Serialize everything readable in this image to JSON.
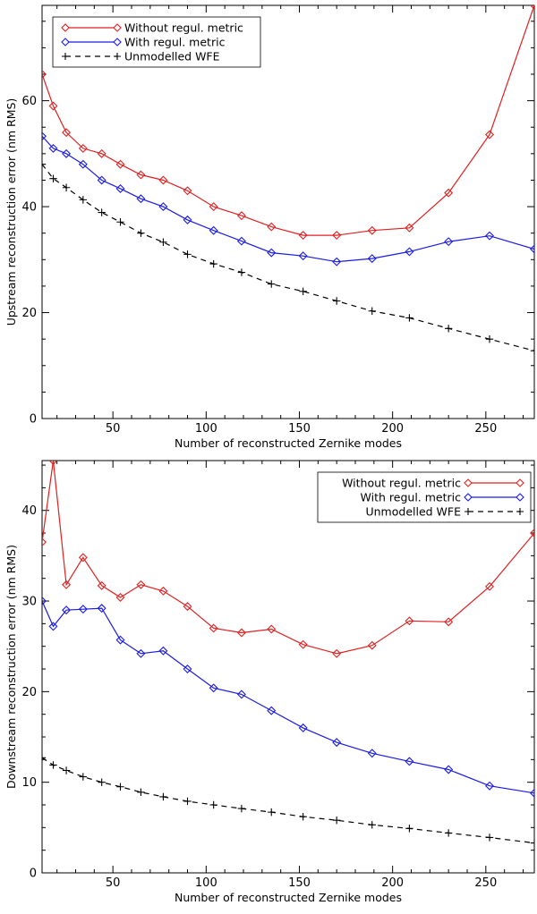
{
  "chart_data": [
    {
      "type": "line",
      "title": "",
      "xlabel": "Number of reconstructed Zernike modes",
      "ylabel": "Upstream reconstruction error (nm RMS)",
      "xlim": [
        12,
        276
      ],
      "ylim": [
        0,
        78
      ],
      "xticks": [
        50,
        100,
        150,
        200,
        250
      ],
      "yticks": [
        0,
        20,
        40,
        60
      ],
      "legend_position": "top-left",
      "x": [
        12,
        18,
        25,
        34,
        44,
        54,
        65,
        77,
        90,
        104,
        119,
        135,
        152,
        170,
        189,
        209,
        230,
        252,
        276
      ],
      "series": [
        {
          "name": "Without regul. metric",
          "color": "#e02020",
          "marker": "diamond",
          "dash": "solid",
          "values": [
            65,
            59,
            54,
            51,
            50,
            48,
            46,
            45,
            43,
            40,
            38.3,
            36.2,
            34.6,
            34.6,
            35.5,
            36,
            42.6,
            53.6,
            78
          ]
        },
        {
          "name": "With regul. metric",
          "color": "#1a1ae6",
          "marker": "diamond",
          "dash": "solid",
          "values": [
            53.3,
            51,
            50,
            48,
            45,
            43.4,
            41.5,
            40,
            37.5,
            35.5,
            33.5,
            31.3,
            30.7,
            29.6,
            30.2,
            31.5,
            33.4,
            34.5,
            32
          ]
        },
        {
          "name": "Unmodelled WFE",
          "color": "#000000",
          "marker": "plus",
          "dash": "dashed",
          "values": [
            48,
            45.3,
            43.6,
            41.3,
            38.9,
            37.1,
            35,
            33.3,
            31,
            29.2,
            27.6,
            25.4,
            24,
            22.2,
            20.3,
            19,
            17,
            15,
            12.8
          ]
        }
      ]
    },
    {
      "type": "line",
      "title": "",
      "xlabel": "Number of reconstructed Zernike modes",
      "ylabel": "Downstream reconstruction error (nm RMS)",
      "xlim": [
        12,
        276
      ],
      "ylim": [
        0,
        45.5
      ],
      "xticks": [
        50,
        100,
        150,
        200,
        250
      ],
      "yticks": [
        0,
        10,
        20,
        30,
        40
      ],
      "legend_position": "top-right",
      "x": [
        12,
        18,
        25,
        34,
        44,
        54,
        65,
        77,
        90,
        104,
        119,
        135,
        152,
        170,
        189,
        209,
        230,
        252,
        276
      ],
      "series": [
        {
          "name": "Without regul. metric",
          "color": "#e02020",
          "marker": "diamond",
          "dash": "solid",
          "values": [
            36.5,
            45.5,
            31.8,
            34.8,
            31.7,
            30.4,
            31.8,
            31.1,
            29.4,
            27,
            26.5,
            26.9,
            25.2,
            24.2,
            25.1,
            27.8,
            27.7,
            31.6,
            37.5
          ]
        },
        {
          "name": "With regul. metric",
          "color": "#1a1ae6",
          "marker": "diamond",
          "dash": "solid",
          "values": [
            30,
            27.2,
            29,
            29.1,
            29.2,
            25.7,
            24.2,
            24.5,
            22.5,
            20.4,
            19.7,
            17.9,
            16,
            14.4,
            13.2,
            12.3,
            11.4,
            9.6,
            8.8
          ]
        },
        {
          "name": "Unmodelled WFE",
          "color": "#000000",
          "marker": "plus",
          "dash": "dashed",
          "values": [
            12.7,
            11.9,
            11.3,
            10.6,
            10,
            9.5,
            8.9,
            8.4,
            7.9,
            7.5,
            7.1,
            6.7,
            6.2,
            5.8,
            5.3,
            4.9,
            4.4,
            3.9,
            3.3
          ]
        }
      ]
    }
  ]
}
